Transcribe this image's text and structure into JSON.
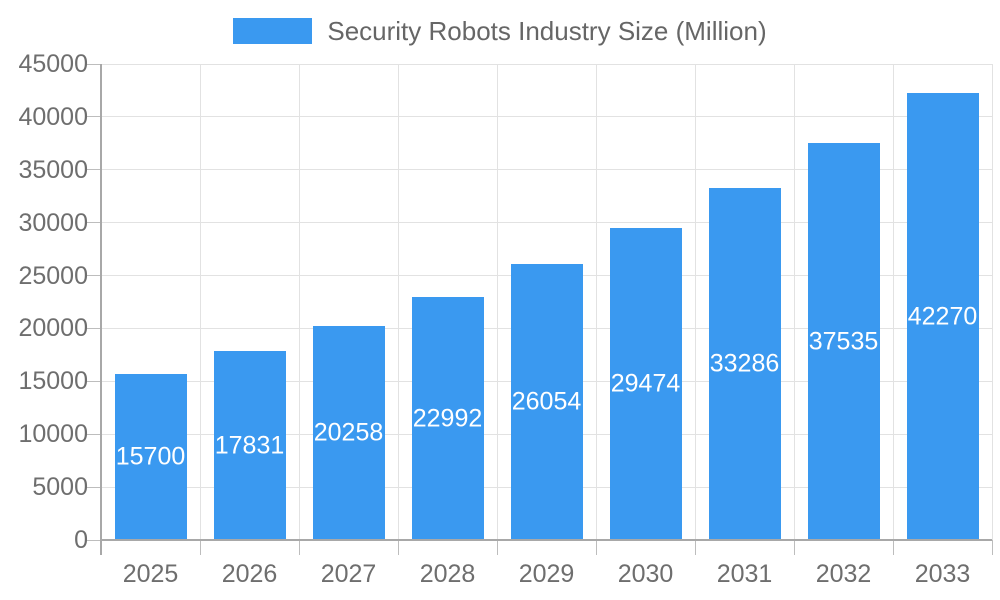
{
  "legend": {
    "label": "Security Robots Industry Size (Million)",
    "swatch_color": "#3A99F0",
    "text_color": "#666666"
  },
  "chart_data": {
    "type": "bar",
    "title": "Security Robots Industry Size (Million)",
    "series_name": "Security Robots Industry Size (Million)",
    "categories": [
      "2025",
      "2026",
      "2027",
      "2028",
      "2029",
      "2030",
      "2031",
      "2032",
      "2033"
    ],
    "values": [
      15700,
      17831,
      20258,
      22992,
      26054,
      29474,
      33286,
      37535,
      42270
    ],
    "xlabel": "",
    "ylabel": "",
    "ylim": [
      0,
      45000
    ],
    "yticks": [
      0,
      5000,
      10000,
      15000,
      20000,
      25000,
      30000,
      35000,
      40000,
      45000
    ],
    "grid": "both",
    "legend_position": "top",
    "bar_labels_inside": true,
    "colors": {
      "bar": "#3A99F0",
      "bar_label": "#FFFFFF",
      "axis_text": "#6E6E6E",
      "grid_line": "#E2E2E2",
      "axis_line": "#A8A8A8",
      "tick_mark": "#BDBDBD"
    }
  }
}
